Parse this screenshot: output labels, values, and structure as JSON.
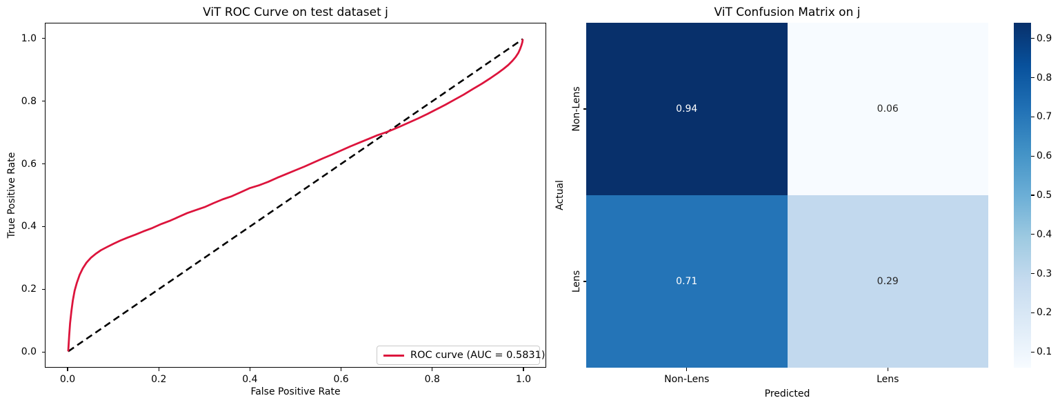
{
  "figure": {
    "background": "#ffffff"
  },
  "roc_plot": {
    "title": "ViT ROC Curve on test dataset j",
    "xlabel": "False Positive Rate",
    "ylabel": "True Positive Rate",
    "legend_label": "ROC curve (AUC = 0.5831)",
    "auc": 0.5831,
    "line_color": "#dc143c",
    "diagonal_color": "#000000"
  },
  "cm_plot": {
    "title": "ViT Confusion Matrix on j",
    "xlabel": "Predicted",
    "ylabel": "Actual",
    "cell_labels": [
      "0.94",
      "0.06",
      "0.71",
      "0.29"
    ],
    "dark_cell_color": "#08306b",
    "light_cell_color": "#f7fbff"
  },
  "chart_data": [
    {
      "type": "line",
      "title": "ViT ROC Curve on test dataset j",
      "xlabel": "False Positive Rate",
      "ylabel": "True Positive Rate",
      "xlim": [
        -0.05,
        1.05
      ],
      "ylim": [
        -0.05,
        1.05
      ],
      "x_ticks": [
        0.0,
        0.2,
        0.4,
        0.6,
        0.8,
        1.0
      ],
      "y_ticks": [
        0.0,
        0.2,
        0.4,
        0.6,
        0.8,
        1.0
      ],
      "grid": false,
      "legend_position": "lower right",
      "series": [
        {
          "name": "ROC curve (AUC = 0.5831)",
          "color": "#dc143c",
          "style": "solid",
          "width": 2.8,
          "points": [
            [
              0.0,
              0.0
            ],
            [
              0.002,
              0.05
            ],
            [
              0.004,
              0.09
            ],
            [
              0.007,
              0.13
            ],
            [
              0.01,
              0.163
            ],
            [
              0.014,
              0.194
            ],
            [
              0.019,
              0.22
            ],
            [
              0.025,
              0.245
            ],
            [
              0.032,
              0.266
            ],
            [
              0.04,
              0.284
            ],
            [
              0.05,
              0.3
            ],
            [
              0.06,
              0.312
            ],
            [
              0.072,
              0.324
            ],
            [
              0.085,
              0.334
            ],
            [
              0.1,
              0.345
            ],
            [
              0.115,
              0.355
            ],
            [
              0.13,
              0.364
            ],
            [
              0.148,
              0.374
            ],
            [
              0.165,
              0.384
            ],
            [
              0.185,
              0.395
            ],
            [
              0.205,
              0.408
            ],
            [
              0.225,
              0.419
            ],
            [
              0.245,
              0.432
            ],
            [
              0.262,
              0.443
            ],
            [
              0.28,
              0.452
            ],
            [
              0.3,
              0.462
            ],
            [
              0.32,
              0.475
            ],
            [
              0.34,
              0.487
            ],
            [
              0.36,
              0.497
            ],
            [
              0.38,
              0.51
            ],
            [
              0.4,
              0.523
            ],
            [
              0.42,
              0.532
            ],
            [
              0.44,
              0.543
            ],
            [
              0.46,
              0.556
            ],
            [
              0.48,
              0.568
            ],
            [
              0.5,
              0.58
            ],
            [
              0.52,
              0.592
            ],
            [
              0.54,
              0.605
            ],
            [
              0.56,
              0.618
            ],
            [
              0.58,
              0.63
            ],
            [
              0.6,
              0.643
            ],
            [
              0.62,
              0.656
            ],
            [
              0.64,
              0.668
            ],
            [
              0.66,
              0.68
            ],
            [
              0.68,
              0.692
            ],
            [
              0.7,
              0.702
            ],
            [
              0.714,
              0.71
            ],
            [
              0.73,
              0.72
            ],
            [
              0.75,
              0.733
            ],
            [
              0.77,
              0.746
            ],
            [
              0.79,
              0.76
            ],
            [
              0.81,
              0.775
            ],
            [
              0.83,
              0.79
            ],
            [
              0.85,
              0.806
            ],
            [
              0.87,
              0.822
            ],
            [
              0.89,
              0.84
            ],
            [
              0.91,
              0.857
            ],
            [
              0.93,
              0.876
            ],
            [
              0.945,
              0.891
            ],
            [
              0.958,
              0.905
            ],
            [
              0.968,
              0.917
            ],
            [
              0.977,
              0.93
            ],
            [
              0.984,
              0.942
            ],
            [
              0.99,
              0.955
            ],
            [
              0.994,
              0.968
            ],
            [
              0.997,
              0.98
            ],
            [
              0.999,
              0.99
            ],
            [
              1.0,
              1.0
            ]
          ]
        },
        {
          "name": "chance diagonal",
          "color": "#000000",
          "style": "dashed",
          "width": 2.6,
          "points": [
            [
              0.0,
              0.0
            ],
            [
              1.0,
              1.0
            ]
          ]
        }
      ]
    },
    {
      "type": "heatmap",
      "title": "ViT Confusion Matrix on j",
      "xlabel": "Predicted",
      "ylabel": "Actual",
      "x_categories": [
        "Non-Lens",
        "Lens"
      ],
      "y_categories": [
        "Non-Lens",
        "Lens"
      ],
      "values": [
        [
          0.94,
          0.06
        ],
        [
          0.71,
          0.29
        ]
      ],
      "value_format": ".2f",
      "colormap": "Blues",
      "colorbar": {
        "vmin": 0.06,
        "vmax": 0.94,
        "ticks": [
          0.1,
          0.2,
          0.3,
          0.4,
          0.5,
          0.6,
          0.7,
          0.8,
          0.9
        ]
      }
    }
  ]
}
